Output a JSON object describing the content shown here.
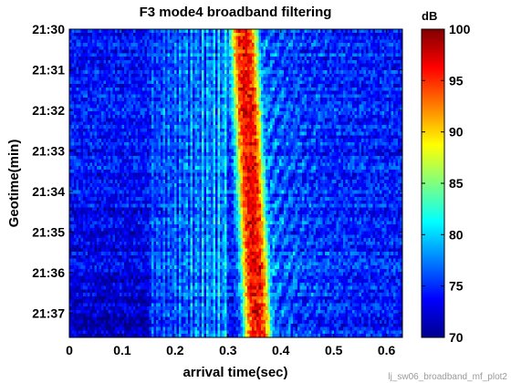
{
  "chart_data": {
    "type": "heatmap",
    "title": "F3 mode4 broadband filtering",
    "xlabel": "arrival time(sec)",
    "ylabel": "Geotime(min)",
    "xlim": [
      0,
      0.63
    ],
    "ylim": [
      "21:30",
      "21:37.6"
    ],
    "x_ticks": [
      "0",
      "0.1",
      "0.2",
      "0.3",
      "0.4",
      "0.5",
      "0.6"
    ],
    "x_tick_values": [
      0,
      0.1,
      0.2,
      0.3,
      0.4,
      0.5,
      0.6
    ],
    "y_ticks": [
      "21:30",
      "21:31",
      "21:32",
      "21:33",
      "21:34",
      "21:35",
      "21:36",
      "21:37"
    ],
    "y_tick_minutes": [
      0,
      1,
      2,
      3,
      4,
      5,
      6,
      7
    ],
    "y_range_minutes": [
      0,
      7.6
    ],
    "colorbar": {
      "label": "dB",
      "min": 70,
      "max": 100,
      "ticks": [
        "100",
        "95",
        "90",
        "85",
        "80",
        "75",
        "70"
      ],
      "tick_values": [
        100,
        95,
        90,
        85,
        80,
        75,
        70
      ],
      "colormap": "jet"
    },
    "features": {
      "background_level_db": 74,
      "band_pattern_range_sec": [
        0.2,
        0.3
      ],
      "peak_arrival_sec": [
        0.3,
        0.36
      ],
      "peak_level_db": 96,
      "main_arrival_center_sec": 0.33,
      "drift_per_min_sec": 0.0035,
      "secondary_scatter_range_sec": [
        0.36,
        0.62
      ]
    }
  },
  "footer_text": "lj_sw06_broadband_mf_plot2"
}
